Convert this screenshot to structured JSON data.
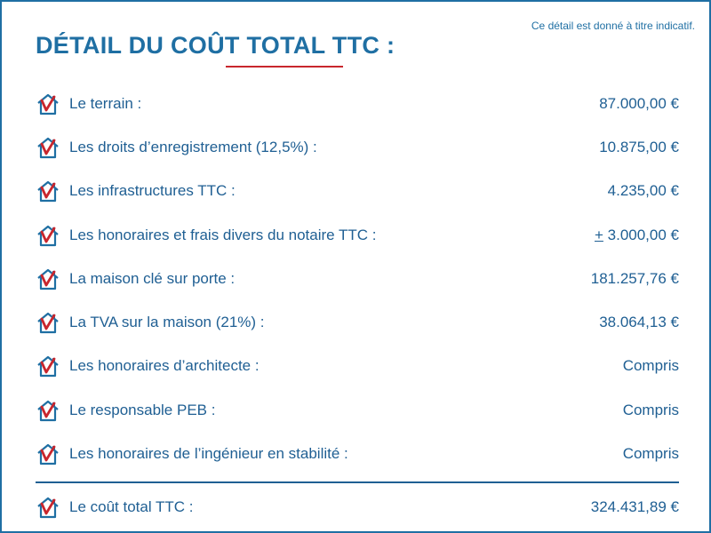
{
  "header": {
    "note": "Ce détail est donné à titre indicatif.",
    "title": "DÉTAIL DU COÛT TOTAL TTC :"
  },
  "icon_name": "house-check-icon",
  "colors": {
    "primary": "#1f6fa3",
    "text": "#1f5f93",
    "accent": "#c8262d"
  },
  "items": [
    {
      "label": "Le terrain :",
      "value": "87.000,00 €"
    },
    {
      "label": "Les droits d’enregistrement (12,5%) :",
      "value": "10.875,00 €"
    },
    {
      "label": "Les infrastructures TTC :",
      "value": "4.235,00 €"
    },
    {
      "label": "Les honoraires et frais divers du notaire TTC :",
      "prefix": "+",
      "value": " 3.000,00 €"
    },
    {
      "label": "La maison clé sur porte :",
      "value": "181.257,76 €"
    },
    {
      "label": "La TVA sur la maison (21%) :",
      "value": "38.064,13 €"
    },
    {
      "label": "Les honoraires d’architecte :",
      "value": "Compris"
    },
    {
      "label": "Le responsable PEB :",
      "value": "Compris"
    },
    {
      "label": "Les honoraires de l’ingénieur en stabilité :",
      "value": "Compris"
    }
  ],
  "total": {
    "label": "Le coût total TTC :",
    "value": "324.431,89 €"
  }
}
